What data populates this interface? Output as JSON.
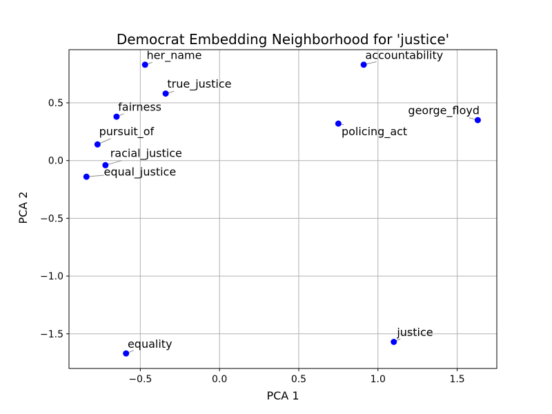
{
  "chart_data": {
    "type": "scatter",
    "title": "Democrat Embedding Neighborhood for 'justice'",
    "xlabel": "PCA 1",
    "ylabel": "PCA 2",
    "xlim": [
      -0.95,
      1.75
    ],
    "ylim": [
      -1.8,
      0.96
    ],
    "xticks": [
      -0.5,
      0.0,
      0.5,
      1.0,
      1.5
    ],
    "yticks": [
      -1.5,
      -1.0,
      -0.5,
      0.0,
      0.5
    ],
    "xtick_labels": [
      "−0.5",
      "0.0",
      "0.5",
      "1.0",
      "1.5"
    ],
    "ytick_labels": [
      "−1.5",
      "−1.0",
      "−0.5",
      "0.0",
      "0.5"
    ],
    "grid": true,
    "point_color": "#0000ff",
    "connector_color": "#8c8c8c",
    "points": [
      {
        "label": "her_name",
        "x": -0.47,
        "y": 0.83,
        "label_x": -0.46,
        "label_y": 0.88
      },
      {
        "label": "true_justice",
        "x": -0.34,
        "y": 0.58,
        "label_x": -0.33,
        "label_y": 0.63
      },
      {
        "label": "accountability",
        "x": 0.91,
        "y": 0.83,
        "label_x": 0.92,
        "label_y": 0.88
      },
      {
        "label": "fairness",
        "x": -0.65,
        "y": 0.38,
        "label_x": -0.64,
        "label_y": 0.43
      },
      {
        "label": "pursuit_of",
        "x": -0.77,
        "y": 0.14,
        "label_x": -0.76,
        "label_y": 0.22
      },
      {
        "label": "racial_justice",
        "x": -0.72,
        "y": -0.04,
        "label_x": -0.69,
        "label_y": 0.03
      },
      {
        "label": "equal_justice",
        "x": -0.84,
        "y": -0.14,
        "label_x": -0.73,
        "label_y": -0.13
      },
      {
        "label": "policing_act",
        "x": 0.75,
        "y": 0.32,
        "label_x": 0.77,
        "label_y": 0.22
      },
      {
        "label": "george_floyd",
        "x": 1.63,
        "y": 0.35,
        "label_x": 1.19,
        "label_y": 0.4
      },
      {
        "label": "justice",
        "x": 1.1,
        "y": -1.57,
        "label_x": 1.12,
        "label_y": -1.52
      },
      {
        "label": "equality",
        "x": -0.59,
        "y": -1.67,
        "label_x": -0.58,
        "label_y": -1.62
      }
    ]
  }
}
